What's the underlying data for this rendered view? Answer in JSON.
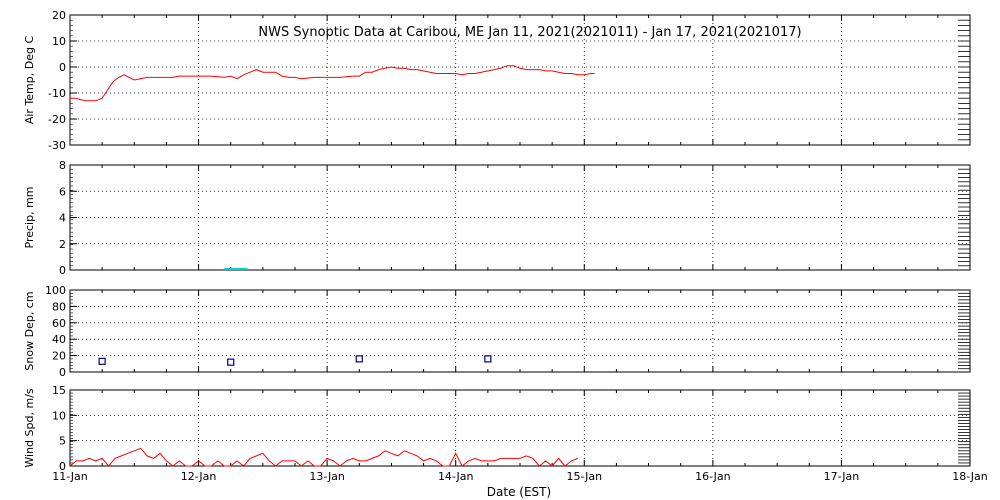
{
  "chart_data": {
    "type": "line",
    "title": "NWS Synoptic Data at Caribou, ME   Jan 11, 2021(2021011) - Jan 17, 2021(2021017)",
    "xlabel": "Date (EST)",
    "x_ticks": [
      "11-Jan",
      "12-Jan",
      "13-Jan",
      "14-Jan",
      "15-Jan",
      "16-Jan",
      "17-Jan",
      "18-Jan"
    ],
    "xlim": [
      "2021-01-11",
      "2021-01-18"
    ],
    "grid": true,
    "panels": [
      {
        "name": "air-temp",
        "ylabel": "Air Temp, Deg C",
        "ylim": [
          -30,
          20
        ],
        "yticks": [
          -30,
          -20,
          -10,
          0,
          10,
          20
        ],
        "series": [
          {
            "type": "line",
            "color": "#ff0000",
            "x": [
              0.0,
              0.04,
              0.08,
              0.12,
              0.15,
              0.18,
              0.2,
              0.25,
              0.29,
              0.33,
              0.35,
              0.38,
              0.42,
              0.46,
              0.5,
              0.6,
              0.75,
              0.8,
              0.85,
              0.88,
              0.92,
              1.0,
              1.1,
              1.2,
              1.25,
              1.3,
              1.35,
              1.4,
              1.45,
              1.5,
              1.55,
              1.6,
              1.65,
              1.7,
              1.75,
              1.8,
              1.9,
              2.0,
              2.1,
              2.2,
              2.25,
              2.3,
              2.35,
              2.4,
              2.45,
              2.5,
              2.55,
              2.6,
              2.65,
              2.7,
              2.75,
              2.8,
              2.85,
              2.9,
              2.95,
              3.0,
              3.05,
              3.1,
              3.15,
              3.2,
              3.25,
              3.3,
              3.35,
              3.4,
              3.45,
              3.5,
              3.55,
              3.6,
              3.65,
              3.7,
              3.75,
              3.8,
              3.85,
              3.9,
              3.95,
              4.0,
              4.05,
              4.08
            ],
            "y": [
              -12,
              -12,
              -12.5,
              -13,
              -13,
              -13,
              -13,
              -12,
              -9,
              -6,
              -5,
              -4,
              -3,
              -4,
              -5,
              -4,
              -4,
              -4,
              -3.5,
              -3.5,
              -3.5,
              -3.5,
              -3.5,
              -4,
              -3.5,
              -4.5,
              -3,
              -2,
              -1,
              -2,
              -2,
              -2,
              -3.5,
              -4,
              -4,
              -4.5,
              -4,
              -4,
              -4,
              -3.5,
              -3.5,
              -2,
              -2,
              -1,
              -0.5,
              0,
              -0.5,
              -0.5,
              -1,
              -1,
              -1.5,
              -2,
              -2.5,
              -2.5,
              -2.5,
              -2.5,
              -3,
              -2.5,
              -2.5,
              -2,
              -1.5,
              -1,
              -0.5,
              0.5,
              0.5,
              -0.5,
              -1,
              -1,
              -1,
              -1.5,
              -1.5,
              -2,
              -2.5,
              -2.5,
              -3,
              -3,
              -2.5,
              -2.5
            ]
          }
        ]
      },
      {
        "name": "precip",
        "ylabel": "Precip, mm",
        "ylim": [
          0,
          8
        ],
        "yticks": [
          0,
          2,
          4,
          6,
          8
        ],
        "series": [
          {
            "type": "bar",
            "color": "#00d0d0",
            "x_start": [
              1.2
            ],
            "x_end": [
              1.38
            ],
            "values": [
              0.1
            ]
          }
        ]
      },
      {
        "name": "snow-depth",
        "ylabel": "Snow Dep, cm",
        "ylim": [
          0,
          100
        ],
        "yticks": [
          0,
          20,
          40,
          60,
          80,
          100
        ],
        "series": [
          {
            "type": "scatter",
            "color": "#000080",
            "x": [
              0.25,
              1.25,
              2.25,
              3.25
            ],
            "y": [
              13,
              12,
              16,
              16
            ]
          }
        ]
      },
      {
        "name": "wind-speed",
        "ylabel": "Wind Spd, m/s",
        "ylim": [
          0,
          15
        ],
        "yticks": [
          0,
          5,
          10,
          15
        ],
        "series": [
          {
            "type": "line",
            "color": "#ff0000",
            "x": [
              0.0,
              0.05,
              0.1,
              0.15,
              0.2,
              0.25,
              0.3,
              0.35,
              0.4,
              0.45,
              0.5,
              0.55,
              0.6,
              0.65,
              0.7,
              0.75,
              0.8,
              0.85,
              0.9,
              0.95,
              1.0,
              1.05,
              1.1,
              1.15,
              1.2,
              1.25,
              1.3,
              1.35,
              1.4,
              1.45,
              1.5,
              1.55,
              1.6,
              1.65,
              1.7,
              1.75,
              1.8,
              1.85,
              1.9,
              1.95,
              2.0,
              2.05,
              2.1,
              2.15,
              2.2,
              2.25,
              2.3,
              2.35,
              2.4,
              2.45,
              2.5,
              2.55,
              2.6,
              2.65,
              2.7,
              2.75,
              2.8,
              2.85,
              2.9,
              2.95,
              3.0,
              3.05,
              3.1,
              3.15,
              3.2,
              3.25,
              3.3,
              3.35,
              3.4,
              3.45,
              3.5,
              3.55,
              3.6,
              3.65,
              3.7,
              3.75,
              3.8,
              3.85,
              3.9,
              3.95
            ],
            "y": [
              0,
              1,
              1,
              1.5,
              1,
              1.5,
              0,
              1.5,
              2,
              2.5,
              3,
              3.5,
              2,
              1.5,
              2.5,
              1,
              0,
              1,
              0,
              0,
              1,
              0,
              0,
              1,
              0,
              0,
              1,
              0,
              1.5,
              2,
              2.5,
              1,
              0,
              1,
              1,
              1,
              0,
              1,
              0,
              0,
              1.5,
              1,
              0,
              1,
              1.5,
              1,
              1,
              1.5,
              2,
              3,
              2.5,
              2,
              3,
              2.5,
              2,
              1,
              1.5,
              1,
              0,
              0,
              2.5,
              0,
              1,
              1.5,
              1,
              1,
              1,
              1.5,
              1.5,
              1.5,
              1.5,
              2,
              1.5,
              0,
              1,
              0,
              1.5,
              0,
              1,
              1.5
            ]
          }
        ]
      }
    ]
  }
}
